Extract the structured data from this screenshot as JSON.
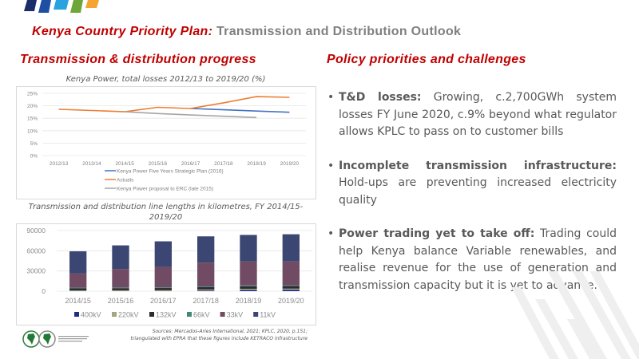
{
  "header": {
    "title_prefix": "Kenya Country Priority Plan:",
    "title_suffix": "Transmission  and Distribution  Outlook"
  },
  "left": {
    "section_title": "Transmission  & distribution  progress"
  },
  "right": {
    "section_title": "Policy  priorities  and  challenges",
    "bullets": [
      {
        "bold": "T&D losses:",
        "text": " Growing, c.2,700GWh system losses FY June 2020, c.9% beyond what regulator allows KPLC to pass on to customer bills"
      },
      {
        "bold": "Incomplete transmission infrastructure:",
        "text": " Hold-ups are preventing increased electricity quality"
      },
      {
        "bold": "Power trading yet to take off:",
        "text": " Trading could help Kenya balance Variable renewables, and realise revenue for the use of generation and transmission capacity but it is yet to advance."
      }
    ]
  },
  "footer": {
    "sources_line1": "Sources: Mercados-Aries International,  2021;  KPLC, 2020,  p.151;",
    "sources_line2": "triangulated  with EPRA that  these figures include KETRACO infrastructure",
    "logo_label": "African Development Bank Group"
  },
  "colors": {
    "accent_red": "#c00000",
    "strategic_plan": "#4472c4",
    "actuals": "#ed7d31",
    "erc_proposal": "#a5a5a5"
  },
  "chart_data": [
    {
      "type": "line",
      "title": "Kenya Power, total losses 2012/13 to 2019/20 (%)",
      "xlabel": "",
      "ylabel": "",
      "categories": [
        "2012/13",
        "2013/14",
        "2014/15",
        "2015/16",
        "2016/17",
        "2017/18",
        "2018/19",
        "2019/20"
      ],
      "yticks": [
        "0%",
        "5%",
        "10%",
        "15%",
        "20%",
        "25%"
      ],
      "ylim": [
        0,
        25
      ],
      "grid": true,
      "legend": "bottom",
      "series": [
        {
          "name": "Kenya Power Five Years Strategic Plan (2016)",
          "color": "#4472c4",
          "values": [
            null,
            null,
            null,
            null,
            18.9,
            18.4,
            17.9,
            17.4
          ]
        },
        {
          "name": "Actuals",
          "color": "#ed7d31",
          "values": [
            18.6,
            18.1,
            17.6,
            19.4,
            18.9,
            21.2,
            23.7,
            23.4
          ]
        },
        {
          "name": "Kenya Power proposal to ERC (late 2015)",
          "color": "#a5a5a5",
          "values": [
            null,
            null,
            17.6,
            16.9,
            16.3,
            15.8,
            15.3,
            null
          ]
        }
      ]
    },
    {
      "type": "bar",
      "stacked": true,
      "title": "Transmission and distribution line lengths in kilometres, FY 2014/15-2019/20",
      "xlabel": "",
      "ylabel": "",
      "categories": [
        "2014/15",
        "2015/16",
        "2016/17",
        "2017/18",
        "2018/19",
        "2019/20"
      ],
      "yticks": [
        "0",
        "30000",
        "60000",
        "90000"
      ],
      "ylim": [
        0,
        90000
      ],
      "grid": true,
      "legend": "bottom",
      "series": [
        {
          "name": "400kV",
          "color": "#1f2d86",
          "values": [
            0,
            0,
            0,
            1000,
            2000,
            2200
          ]
        },
        {
          "name": "220kV",
          "color": "#a5a57f",
          "values": [
            1200,
            1300,
            1400,
            1500,
            1600,
            1600
          ]
        },
        {
          "name": "132kV",
          "color": "#2e2a30",
          "values": [
            3000,
            3200,
            3300,
            3600,
            3800,
            3800
          ]
        },
        {
          "name": "66kV",
          "color": "#3e8a7a",
          "values": [
            1000,
            1000,
            1000,
            1000,
            1100,
            1100
          ]
        },
        {
          "name": "33kV",
          "color": "#704b63",
          "values": [
            21000,
            27500,
            30300,
            35300,
            35500,
            35500
          ]
        },
        {
          "name": "11kV",
          "color": "#3b4673",
          "values": [
            33000,
            35000,
            38000,
            39000,
            39500,
            40300
          ]
        }
      ]
    }
  ]
}
